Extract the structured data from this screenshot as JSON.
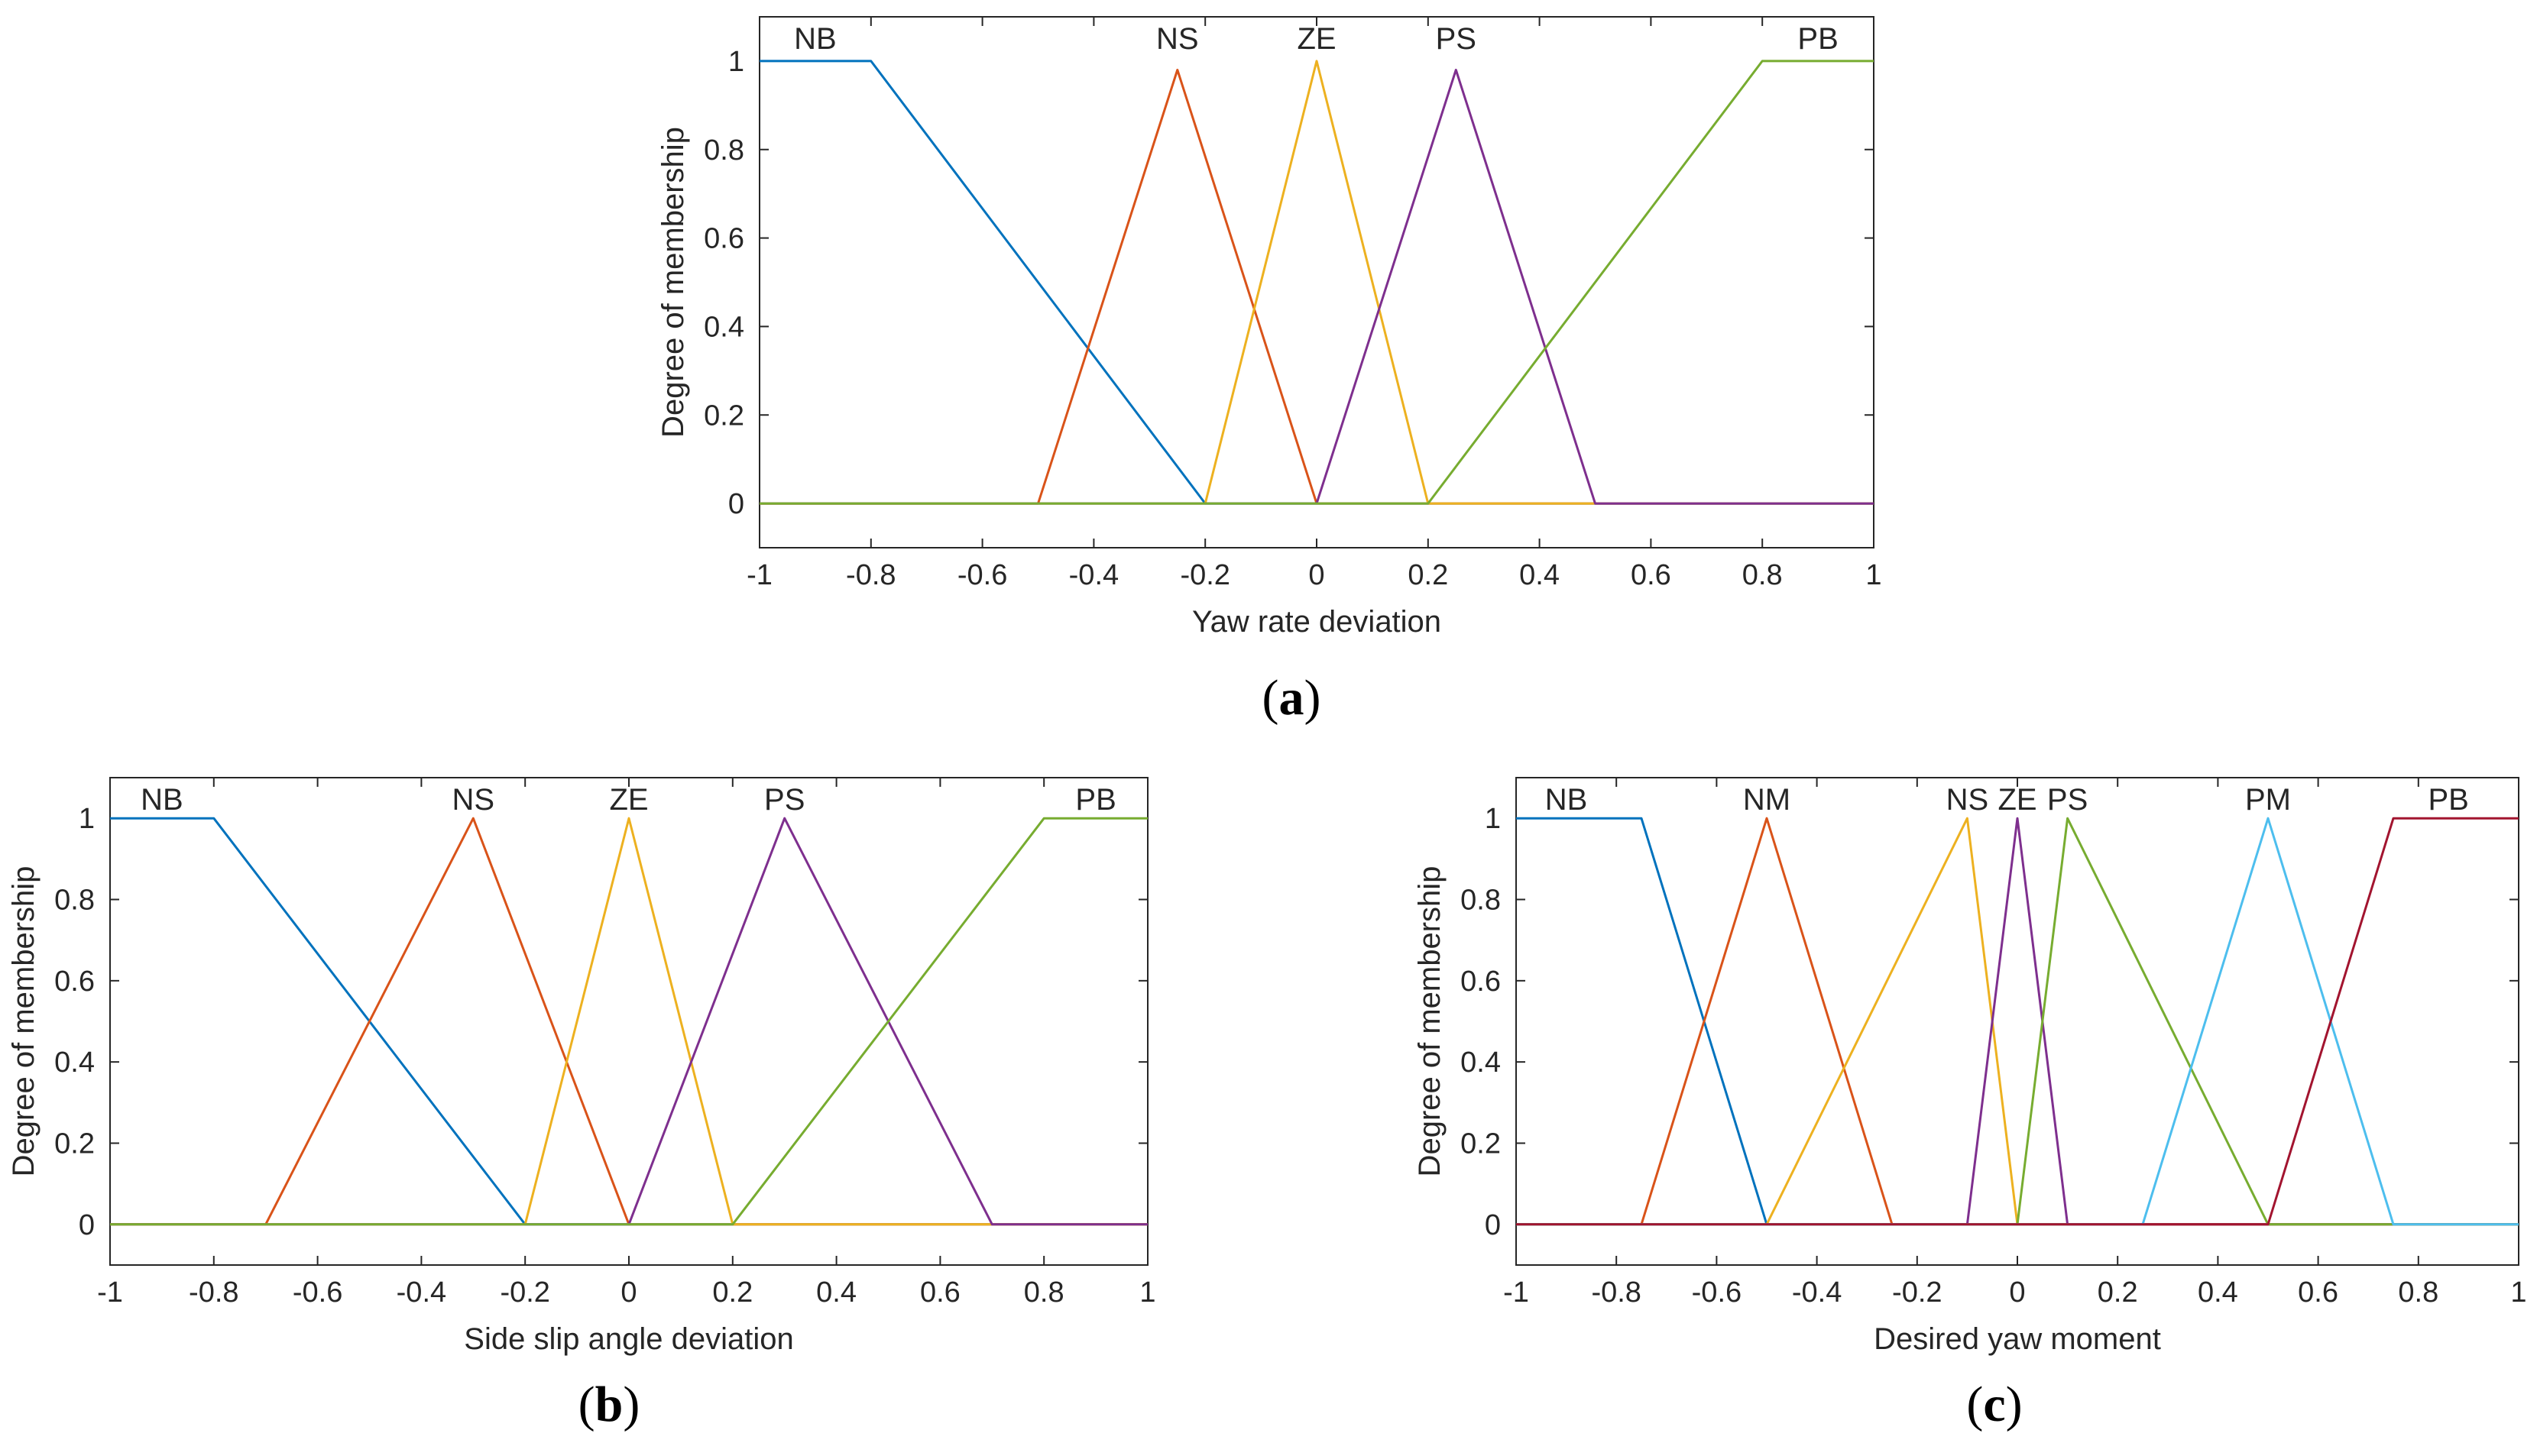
{
  "chart_data": [
    {
      "type": "line",
      "panel": "(a)",
      "panel_letter": "a",
      "xlabel": "Yaw rate deviation",
      "ylabel": "Degree of membership",
      "xlim": [
        -1,
        1
      ],
      "ylim": [
        -0.1,
        1.1
      ],
      "xticks": [
        -1,
        -0.8,
        -0.6,
        -0.4,
        -0.2,
        0,
        0.2,
        0.4,
        0.6,
        0.8,
        1
      ],
      "xtick_labels": [
        "-1",
        "-0.8",
        "-0.6",
        "-0.4",
        "-0.2",
        "0",
        "0.2",
        "0.4",
        "0.6",
        "0.8",
        "1"
      ],
      "yticks": [
        0,
        0.2,
        0.4,
        0.6,
        0.8,
        1
      ],
      "ytick_labels": [
        "0",
        "0.2",
        "0.4",
        "0.6",
        "0.8",
        "1"
      ],
      "series": [
        {
          "name": "NB",
          "color": "#0072BD",
          "x": [
            -1,
            -0.8,
            -0.2,
            1
          ],
          "y": [
            1,
            1,
            0,
            0
          ],
          "label_x": -0.9
        },
        {
          "name": "NS",
          "color": "#D95319",
          "x": [
            -1,
            -0.5,
            -0.25,
            0,
            1
          ],
          "y": [
            0,
            0,
            0.98,
            0,
            0
          ],
          "label_x": -0.25
        },
        {
          "name": "ZE",
          "color": "#EDB120",
          "x": [
            -1,
            -0.2,
            0,
            0.2,
            1
          ],
          "y": [
            0,
            0,
            1,
            0,
            0
          ],
          "label_x": 0
        },
        {
          "name": "PS",
          "color": "#7E2F8E",
          "x": [
            -1,
            0,
            0.25,
            0.5,
            1
          ],
          "y": [
            0,
            0,
            0.98,
            0,
            0
          ],
          "label_x": 0.25
        },
        {
          "name": "PB",
          "color": "#77AC30",
          "x": [
            -1,
            0.2,
            0.8,
            1
          ],
          "y": [
            0,
            0,
            1,
            1
          ],
          "label_x": 0.9
        }
      ]
    },
    {
      "type": "line",
      "panel": "(b)",
      "panel_letter": "b",
      "xlabel": "Side slip angle deviation",
      "ylabel": "Degree of membership",
      "xlim": [
        -1,
        1
      ],
      "ylim": [
        -0.1,
        1.1
      ],
      "xticks": [
        -1,
        -0.8,
        -0.6,
        -0.4,
        -0.2,
        0,
        0.2,
        0.4,
        0.6,
        0.8,
        1
      ],
      "xtick_labels": [
        "-1",
        "-0.8",
        "-0.6",
        "-0.4",
        "-0.2",
        "0",
        "0.2",
        "0.4",
        "0.6",
        "0.8",
        "1"
      ],
      "yticks": [
        0,
        0.2,
        0.4,
        0.6,
        0.8,
        1
      ],
      "ytick_labels": [
        "0",
        "0.2",
        "0.4",
        "0.6",
        "0.8",
        "1"
      ],
      "series": [
        {
          "name": "NB",
          "color": "#0072BD",
          "x": [
            -1,
            -0.8,
            -0.2,
            1
          ],
          "y": [
            1,
            1,
            0,
            0
          ],
          "label_x": -0.9
        },
        {
          "name": "NS",
          "color": "#D95319",
          "x": [
            -1,
            -0.7,
            -0.3,
            0,
            1
          ],
          "y": [
            0,
            0,
            1,
            0,
            0
          ],
          "label_x": -0.3
        },
        {
          "name": "ZE",
          "color": "#EDB120",
          "x": [
            -1,
            -0.2,
            0,
            0.2,
            1
          ],
          "y": [
            0,
            0,
            1,
            0,
            0
          ],
          "label_x": 0
        },
        {
          "name": "PS",
          "color": "#7E2F8E",
          "x": [
            -1,
            0,
            0.3,
            0.7,
            1
          ],
          "y": [
            0,
            0,
            1,
            0,
            0
          ],
          "label_x": 0.3
        },
        {
          "name": "PB",
          "color": "#77AC30",
          "x": [
            -1,
            0.2,
            0.8,
            1
          ],
          "y": [
            0,
            0,
            1,
            1
          ],
          "label_x": 0.9
        }
      ]
    },
    {
      "type": "line",
      "panel": "(c)",
      "panel_letter": "c",
      "xlabel": "Desired yaw moment",
      "ylabel": "Degree of membership",
      "xlim": [
        -1,
        1
      ],
      "ylim": [
        -0.1,
        1.1
      ],
      "xticks": [
        -1,
        -0.8,
        -0.6,
        -0.4,
        -0.2,
        0,
        0.2,
        0.4,
        0.6,
        0.8,
        1
      ],
      "xtick_labels": [
        "-1",
        "-0.8",
        "-0.6",
        "-0.4",
        "-0.2",
        "0",
        "0.2",
        "0.4",
        "0.6",
        "0.8",
        "1"
      ],
      "yticks": [
        0,
        0.2,
        0.4,
        0.6,
        0.8,
        1
      ],
      "ytick_labels": [
        "0",
        "0.2",
        "0.4",
        "0.6",
        "0.8",
        "1"
      ],
      "series": [
        {
          "name": "NB",
          "color": "#0072BD",
          "x": [
            -1,
            -0.75,
            -0.5,
            1
          ],
          "y": [
            1,
            1,
            0,
            0
          ],
          "label_x": -0.9
        },
        {
          "name": "NM",
          "color": "#D95319",
          "x": [
            -1,
            -0.75,
            -0.5,
            -0.25,
            1
          ],
          "y": [
            0,
            0,
            1,
            0,
            0
          ],
          "label_x": -0.5
        },
        {
          "name": "NS",
          "color": "#EDB120",
          "x": [
            -1,
            -0.5,
            -0.1,
            0,
            1
          ],
          "y": [
            0,
            0,
            1,
            0,
            0
          ],
          "label_x": -0.1
        },
        {
          "name": "ZE",
          "color": "#7E2F8E",
          "x": [
            -1,
            -0.1,
            0,
            0.1,
            1
          ],
          "y": [
            0,
            0,
            1,
            0,
            0
          ],
          "label_x": 0
        },
        {
          "name": "PS",
          "color": "#77AC30",
          "x": [
            -1,
            0,
            0.1,
            0.5,
            1
          ],
          "y": [
            0,
            0,
            1,
            0,
            0
          ],
          "label_x": 0.1
        },
        {
          "name": "PM",
          "color": "#4DBEEE",
          "x": [
            -1,
            0.25,
            0.5,
            0.75,
            1
          ],
          "y": [
            0,
            0,
            1,
            0,
            0
          ],
          "label_x": 0.5
        },
        {
          "name": "PB",
          "color": "#A2142F",
          "x": [
            -1,
            0.5,
            0.75,
            1
          ],
          "y": [
            0,
            0,
            1,
            1
          ],
          "label_x": 0.86
        }
      ]
    }
  ]
}
